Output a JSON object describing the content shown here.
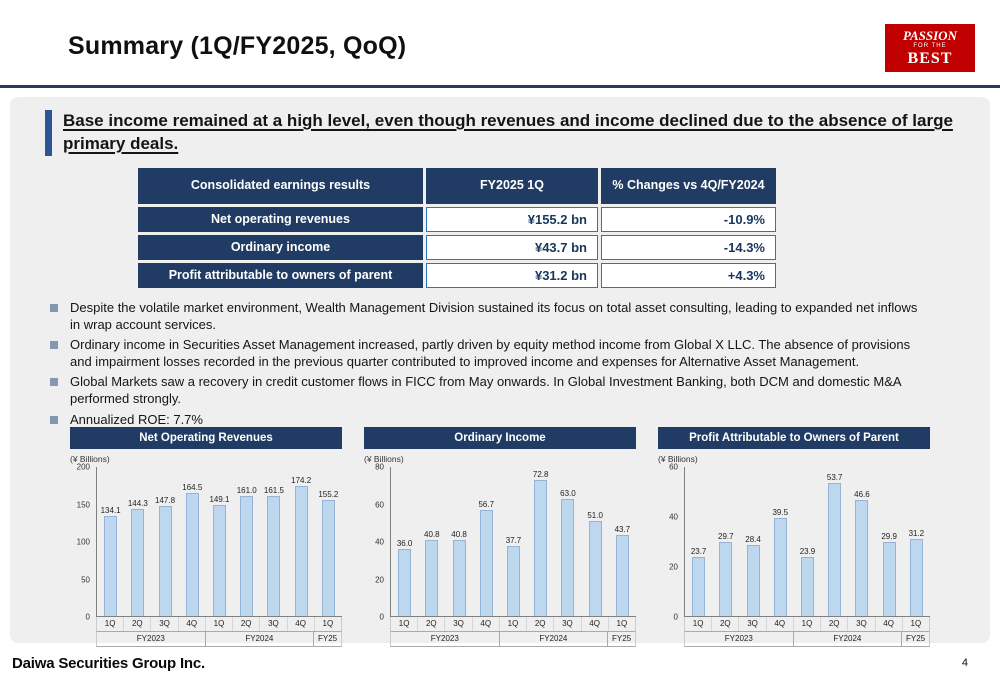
{
  "header": {
    "title": "Summary (1Q/FY2025, QoQ)",
    "logo": {
      "line1": "PASSION",
      "line2": "FOR THE",
      "line3": "BEST"
    }
  },
  "headline": {
    "text": "Base income remained at a high level, even though revenues and income declined due to the absence of large primary deals."
  },
  "summary_table": {
    "col_headers": [
      "Consolidated earnings results",
      "FY2025 1Q",
      "% Changes vs 4Q/FY2024"
    ],
    "rows": [
      {
        "label": "Net operating revenues",
        "value": "¥155.2 bn",
        "change": "-10.9%"
      },
      {
        "label": "Ordinary income",
        "value": "¥43.7 bn",
        "change": "-14.3%"
      },
      {
        "label": "Profit attributable to owners of parent",
        "value": "¥31.2 bn",
        "change": "+4.3%"
      }
    ]
  },
  "bullets": [
    "Despite the volatile market environment, Wealth Management Division sustained its focus on total asset consulting, leading to expanded net inflows in wrap account services.",
    "Ordinary income in Securities Asset Management increased, partly driven by equity method income from Global X LLC. The absence of provisions and impairment losses recorded in the previous quarter contributed to improved income and expenses for Alternative Asset Management.",
    "Global Markets saw a recovery in credit customer flows in FICC from May onwards. In Global Investment Banking, both DCM and domestic M&A performed strongly.",
    "Annualized ROE: 7.7%"
  ],
  "chart_data": [
    {
      "type": "bar",
      "title": "Net Operating Revenues",
      "ylabel": "(¥ Billions)",
      "ylim": [
        0,
        200
      ],
      "yticks": [
        0,
        50,
        100,
        150,
        200
      ],
      "categories": [
        "1Q",
        "2Q",
        "3Q",
        "4Q",
        "1Q",
        "2Q",
        "3Q",
        "4Q",
        "1Q"
      ],
      "groups": [
        {
          "label": "FY2023",
          "span": 4
        },
        {
          "label": "FY2024",
          "span": 4
        },
        {
          "label": "FY25",
          "span": 1
        }
      ],
      "values": [
        134.1,
        144.3,
        147.8,
        164.5,
        149.1,
        161.0,
        161.5,
        174.2,
        155.2
      ],
      "bar_color": "#bdd7ee",
      "grid": false,
      "legend": "none"
    },
    {
      "type": "bar",
      "title": "Ordinary Income",
      "ylabel": "(¥ Billions)",
      "ylim": [
        0,
        80
      ],
      "yticks": [
        0,
        20,
        40,
        60,
        80
      ],
      "categories": [
        "1Q",
        "2Q",
        "3Q",
        "4Q",
        "1Q",
        "2Q",
        "3Q",
        "4Q",
        "1Q"
      ],
      "groups": [
        {
          "label": "FY2023",
          "span": 4
        },
        {
          "label": "FY2024",
          "span": 4
        },
        {
          "label": "FY25",
          "span": 1
        }
      ],
      "values": [
        36.0,
        40.8,
        40.8,
        56.7,
        37.7,
        72.8,
        63.0,
        51.0,
        43.7
      ],
      "bar_color": "#bdd7ee",
      "grid": false,
      "legend": "none"
    },
    {
      "type": "bar",
      "title": "Profit Attributable to Owners of Parent",
      "ylabel": "(¥ Billions)",
      "ylim": [
        0,
        60
      ],
      "yticks": [
        0,
        20,
        40,
        60
      ],
      "categories": [
        "1Q",
        "2Q",
        "3Q",
        "4Q",
        "1Q",
        "2Q",
        "3Q",
        "4Q",
        "1Q"
      ],
      "groups": [
        {
          "label": "FY2023",
          "span": 4
        },
        {
          "label": "FY2024",
          "span": 4
        },
        {
          "label": "FY25",
          "span": 1
        }
      ],
      "values": [
        23.7,
        29.7,
        28.4,
        39.5,
        23.9,
        53.7,
        46.6,
        29.9,
        31.2
      ],
      "bar_color": "#bdd7ee",
      "grid": false,
      "legend": "none"
    }
  ],
  "footer": {
    "company": "Daiwa Securities Group Inc.",
    "page_number": "4"
  },
  "colors": {
    "navy": "#203c64",
    "value_border_blue": "#2e75b6",
    "bar_fill": "#bdd7ee",
    "logo_red": "#c00000",
    "bullet_marker": "#8496b0",
    "panel_gray": "#efefef"
  }
}
